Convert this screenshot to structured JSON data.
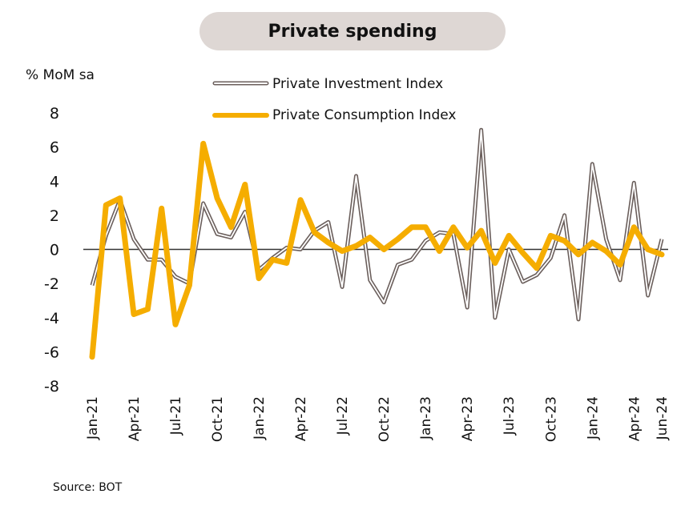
{
  "chart_data": {
    "type": "line",
    "title": "Private spending",
    "ylabel": "% MoM sa",
    "xlabel": "",
    "ylim": [
      -8,
      8
    ],
    "yticks": [
      8,
      6,
      4,
      2,
      0,
      -2,
      -4,
      -6,
      -8
    ],
    "x": [
      "Jan-21",
      "Feb-21",
      "Mar-21",
      "Apr-21",
      "May-21",
      "Jun-21",
      "Jul-21",
      "Aug-21",
      "Sep-21",
      "Oct-21",
      "Nov-21",
      "Dec-21",
      "Jan-22",
      "Feb-22",
      "Mar-22",
      "Apr-22",
      "May-22",
      "Jun-22",
      "Jul-22",
      "Aug-22",
      "Sep-22",
      "Oct-22",
      "Nov-22",
      "Dec-22",
      "Jan-23",
      "Feb-23",
      "Mar-23",
      "Apr-23",
      "May-23",
      "Jun-23",
      "Jul-23",
      "Aug-23",
      "Sep-23",
      "Oct-23",
      "Nov-23",
      "Dec-23",
      "Jan-24",
      "Feb-24",
      "Mar-24",
      "Apr-24",
      "May-24",
      "Jun-24"
    ],
    "xtick_labels": [
      "Jan-21",
      "Apr-21",
      "Jul-21",
      "Oct-21",
      "Jan-22",
      "Apr-22",
      "Jul-22",
      "Oct-22",
      "Jan-23",
      "Apr-23",
      "Jul-23",
      "Oct-23",
      "Jan-24",
      "Apr-24",
      "Jun-24"
    ],
    "legend_position": "top-center",
    "grid": false,
    "series": [
      {
        "name": "Private Investment Index",
        "color": "#6b5f5c",
        "style": "double-line",
        "values": [
          -2.1,
          0.8,
          2.9,
          0.6,
          -0.6,
          -0.6,
          -1.6,
          -2.0,
          2.7,
          0.9,
          0.7,
          2.2,
          -1.2,
          -0.5,
          0.1,
          0.0,
          1.1,
          1.6,
          -2.2,
          4.3,
          -1.8,
          -3.1,
          -0.9,
          -0.6,
          0.5,
          1.0,
          0.9,
          -3.4,
          7.0,
          -4.0,
          0.0,
          -1.9,
          -1.5,
          -0.5,
          2.0,
          -4.1,
          5.0,
          0.6,
          -1.8,
          3.9,
          -2.7,
          0.6
        ]
      },
      {
        "name": "Private Consumption Index",
        "color": "#f5ad00",
        "style": "thick-line",
        "values": [
          -6.3,
          2.6,
          3.0,
          -3.8,
          -3.5,
          2.4,
          -4.4,
          -2.1,
          6.2,
          3.0,
          1.3,
          3.8,
          -1.7,
          -0.6,
          -0.8,
          2.9,
          1.0,
          0.4,
          -0.1,
          0.2,
          0.7,
          0.0,
          0.6,
          1.3,
          1.3,
          -0.1,
          1.3,
          0.1,
          1.1,
          -0.8,
          0.8,
          -0.2,
          -1.1,
          0.8,
          0.5,
          -0.3,
          0.4,
          -0.1,
          -0.9,
          1.3,
          0.0,
          -0.3
        ]
      }
    ],
    "source": "Source: BOT"
  }
}
